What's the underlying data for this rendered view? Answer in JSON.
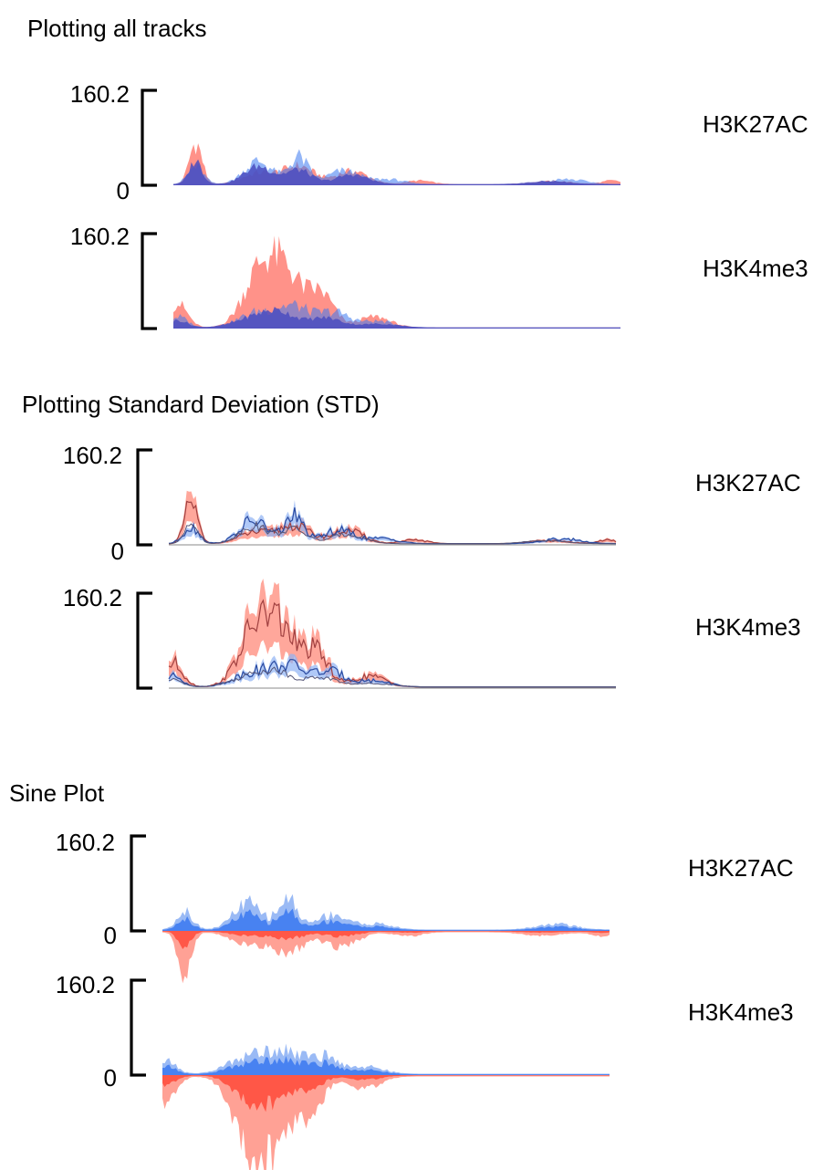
{
  "colors": {
    "red": "#ff4a3a",
    "red_light": "#ff8a7a",
    "blue": "#3a78f0",
    "blue_light": "#8fb2f4",
    "navy": "#4a4cc0",
    "axis": "#000000"
  },
  "sections": [
    {
      "title": "Plotting all tracks"
    },
    {
      "title": "Plotting Standard Deviation (STD)"
    },
    {
      "title": "Sine Plot"
    }
  ],
  "chart_data": [
    {
      "type": "area",
      "title": "Plotting all tracks",
      "ylim": [
        0,
        160.2
      ],
      "ymax_label": "160.2",
      "tracks": [
        {
          "name": "H3K27AC",
          "zero_label": "0",
          "profile": "k27"
        },
        {
          "name": "H3K4me3",
          "zero_label": "",
          "profile": "k4"
        }
      ]
    },
    {
      "type": "line",
      "title": "Plotting Standard Deviation (STD)",
      "ylim": [
        0,
        160.2
      ],
      "ymax_label": "160.2",
      "tracks": [
        {
          "name": "H3K27AC",
          "zero_label": "0",
          "profile": "k27"
        },
        {
          "name": "H3K4me3",
          "zero_label": "",
          "profile": "k4"
        }
      ]
    },
    {
      "type": "area",
      "title": "Sine Plot",
      "ylim": [
        0,
        160.2
      ],
      "ymax_label": "160.2",
      "tracks": [
        {
          "name": "H3K27AC",
          "zero_label": "0",
          "profile": "k27"
        },
        {
          "name": "H3K4me3",
          "zero_label": "0",
          "profile": "k4"
        }
      ]
    }
  ]
}
